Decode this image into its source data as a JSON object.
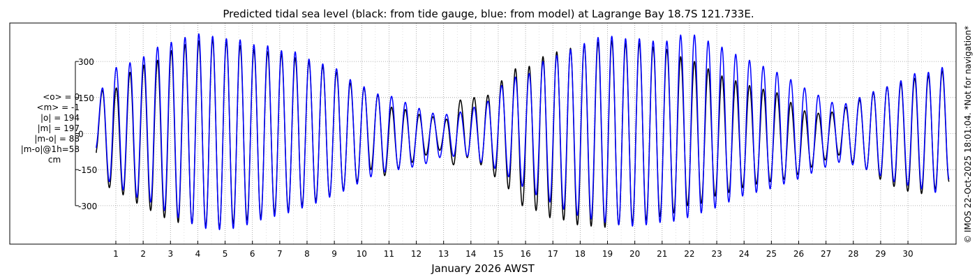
{
  "chart_data": {
    "type": "line",
    "title": "Predicted tidal sea level (black: from tide gauge, blue: from model) at Lagrange Bay 18.7S 121.733E.",
    "xlabel": "January 2026 AWST",
    "ylabel": "",
    "unit": "cm",
    "x_ticks": [
      "1",
      "2",
      "3",
      "4",
      "5",
      "6",
      "7",
      "8",
      "9",
      "10",
      "11",
      "12",
      "13",
      "14",
      "15",
      "16",
      "17",
      "18",
      "19",
      "20",
      "21",
      "22",
      "23",
      "24",
      "25",
      "26",
      "27",
      "28",
      "29",
      "30"
    ],
    "y_ticks": [
      -300,
      -150,
      0,
      150,
      300
    ],
    "xlim_days": [
      0.0,
      31.0
    ],
    "ylim": [
      -460,
      460
    ],
    "grid": true,
    "series": [
      {
        "name": "from tide gauge",
        "color": "#000000",
        "values": [
          [
            0.0,
            -80
          ],
          [
            0.25,
            180
          ],
          [
            0.5,
            -225
          ],
          [
            0.75,
            190
          ],
          [
            1.0,
            -255
          ],
          [
            1.25,
            255
          ],
          [
            1.5,
            -290
          ],
          [
            1.75,
            285
          ],
          [
            2.0,
            -320
          ],
          [
            2.25,
            305
          ],
          [
            2.5,
            -350
          ],
          [
            2.75,
            345
          ],
          [
            3.0,
            -370
          ],
          [
            3.25,
            370
          ],
          [
            3.5,
            -375
          ],
          [
            3.75,
            385
          ],
          [
            4.0,
            -385
          ],
          [
            4.25,
            390
          ],
          [
            4.5,
            -395
          ],
          [
            4.75,
            380
          ],
          [
            5.0,
            -375
          ],
          [
            5.25,
            365
          ],
          [
            5.5,
            -360
          ],
          [
            5.75,
            350
          ],
          [
            6.0,
            -350
          ],
          [
            6.25,
            340
          ],
          [
            6.5,
            -330
          ],
          [
            6.75,
            330
          ],
          [
            7.0,
            -320
          ],
          [
            7.25,
            315
          ],
          [
            7.5,
            -300
          ],
          [
            7.75,
            300
          ],
          [
            8.0,
            -280
          ],
          [
            8.25,
            280
          ],
          [
            8.5,
            -260
          ],
          [
            8.75,
            255
          ],
          [
            9.0,
            -235
          ],
          [
            9.25,
            210
          ],
          [
            9.5,
            -200
          ],
          [
            9.75,
            190
          ],
          [
            10.0,
            -150
          ],
          [
            10.25,
            160
          ],
          [
            10.5,
            -175
          ],
          [
            10.75,
            110
          ],
          [
            11.0,
            -145
          ],
          [
            11.25,
            100
          ],
          [
            11.5,
            -120
          ],
          [
            11.75,
            80
          ],
          [
            12.0,
            -90
          ],
          [
            12.25,
            70
          ],
          [
            12.5,
            -70
          ],
          [
            12.75,
            60
          ],
          [
            13.0,
            -130
          ],
          [
            13.25,
            140
          ],
          [
            13.5,
            -100
          ],
          [
            13.75,
            150
          ],
          [
            14.0,
            -130
          ],
          [
            14.25,
            160
          ],
          [
            14.5,
            -180
          ],
          [
            14.75,
            220
          ],
          [
            15.0,
            -230
          ],
          [
            15.25,
            270
          ],
          [
            15.5,
            -300
          ],
          [
            15.75,
            280
          ],
          [
            16.0,
            -320
          ],
          [
            16.25,
            320
          ],
          [
            16.5,
            -350
          ],
          [
            16.75,
            340
          ],
          [
            17.0,
            -360
          ],
          [
            17.25,
            355
          ],
          [
            17.5,
            -380
          ],
          [
            17.75,
            370
          ],
          [
            18.0,
            -385
          ],
          [
            18.25,
            380
          ],
          [
            18.5,
            -390
          ],
          [
            18.75,
            385
          ],
          [
            19.0,
            -380
          ],
          [
            19.25,
            375
          ],
          [
            19.5,
            -370
          ],
          [
            19.75,
            375
          ],
          [
            20.0,
            -360
          ],
          [
            20.25,
            360
          ],
          [
            20.5,
            -345
          ],
          [
            20.75,
            350
          ],
          [
            21.0,
            -330
          ],
          [
            21.25,
            320
          ],
          [
            21.5,
            -300
          ],
          [
            21.75,
            300
          ],
          [
            22.0,
            -290
          ],
          [
            22.25,
            270
          ],
          [
            22.5,
            -260
          ],
          [
            22.75,
            240
          ],
          [
            23.0,
            -245
          ],
          [
            23.25,
            220
          ],
          [
            23.5,
            -225
          ],
          [
            23.75,
            200
          ],
          [
            24.0,
            -210
          ],
          [
            24.25,
            185
          ],
          [
            24.5,
            -200
          ],
          [
            24.75,
            170
          ],
          [
            25.0,
            -190
          ],
          [
            25.25,
            130
          ],
          [
            25.5,
            -170
          ],
          [
            25.75,
            95
          ],
          [
            26.0,
            -140
          ],
          [
            26.25,
            85
          ],
          [
            26.5,
            -110
          ],
          [
            26.75,
            90
          ],
          [
            27.0,
            -90
          ],
          [
            27.25,
            110
          ],
          [
            27.5,
            -120
          ],
          [
            27.75,
            140
          ],
          [
            28.0,
            -150
          ],
          [
            28.25,
            170
          ],
          [
            28.5,
            -190
          ],
          [
            28.75,
            195
          ],
          [
            29.0,
            -220
          ],
          [
            29.25,
            210
          ],
          [
            29.5,
            -240
          ],
          [
            29.75,
            230
          ],
          [
            30.0,
            -250
          ],
          [
            30.25,
            240
          ],
          [
            30.5,
            -230
          ],
          [
            30.75,
            260
          ],
          [
            31.0,
            -200
          ]
        ]
      },
      {
        "name": "from model",
        "color": "#0000ff",
        "values": [
          [
            0.0,
            -60
          ],
          [
            0.25,
            190
          ],
          [
            0.5,
            -200
          ],
          [
            0.75,
            275
          ],
          [
            1.0,
            -235
          ],
          [
            1.25,
            295
          ],
          [
            1.5,
            -265
          ],
          [
            1.75,
            320
          ],
          [
            2.0,
            -285
          ],
          [
            2.25,
            360
          ],
          [
            2.5,
            -320
          ],
          [
            2.75,
            380
          ],
          [
            3.0,
            -350
          ],
          [
            3.25,
            400
          ],
          [
            3.5,
            -375
          ],
          [
            3.75,
            415
          ],
          [
            4.0,
            -395
          ],
          [
            4.25,
            405
          ],
          [
            4.5,
            -400
          ],
          [
            4.75,
            395
          ],
          [
            5.0,
            -395
          ],
          [
            5.25,
            390
          ],
          [
            5.5,
            -380
          ],
          [
            5.75,
            370
          ],
          [
            6.0,
            -360
          ],
          [
            6.25,
            365
          ],
          [
            6.5,
            -345
          ],
          [
            6.75,
            345
          ],
          [
            7.0,
            -330
          ],
          [
            7.25,
            340
          ],
          [
            7.5,
            -310
          ],
          [
            7.75,
            310
          ],
          [
            8.0,
            -290
          ],
          [
            8.25,
            290
          ],
          [
            8.5,
            -265
          ],
          [
            8.75,
            270
          ],
          [
            9.0,
            -240
          ],
          [
            9.25,
            225
          ],
          [
            9.5,
            -210
          ],
          [
            9.75,
            195
          ],
          [
            10.0,
            -180
          ],
          [
            10.25,
            165
          ],
          [
            10.5,
            -160
          ],
          [
            10.75,
            155
          ],
          [
            11.0,
            -150
          ],
          [
            11.25,
            130
          ],
          [
            11.5,
            -140
          ],
          [
            11.75,
            105
          ],
          [
            12.0,
            -125
          ],
          [
            12.25,
            85
          ],
          [
            12.5,
            -100
          ],
          [
            12.75,
            80
          ],
          [
            13.0,
            -95
          ],
          [
            13.25,
            90
          ],
          [
            13.5,
            -95
          ],
          [
            13.75,
            110
          ],
          [
            14.0,
            -120
          ],
          [
            14.25,
            135
          ],
          [
            14.5,
            -145
          ],
          [
            14.75,
            200
          ],
          [
            15.0,
            -180
          ],
          [
            15.25,
            235
          ],
          [
            15.5,
            -220
          ],
          [
            15.75,
            250
          ],
          [
            16.0,
            -255
          ],
          [
            16.25,
            300
          ],
          [
            16.5,
            -285
          ],
          [
            16.75,
            325
          ],
          [
            17.0,
            -315
          ],
          [
            17.25,
            350
          ],
          [
            17.5,
            -340
          ],
          [
            17.75,
            375
          ],
          [
            18.0,
            -355
          ],
          [
            18.25,
            400
          ],
          [
            18.5,
            -370
          ],
          [
            18.75,
            405
          ],
          [
            19.0,
            -380
          ],
          [
            19.25,
            395
          ],
          [
            19.5,
            -385
          ],
          [
            19.75,
            395
          ],
          [
            20.0,
            -380
          ],
          [
            20.25,
            385
          ],
          [
            20.5,
            -370
          ],
          [
            20.75,
            385
          ],
          [
            21.0,
            -365
          ],
          [
            21.25,
            410
          ],
          [
            21.5,
            -350
          ],
          [
            21.75,
            410
          ],
          [
            22.0,
            -330
          ],
          [
            22.25,
            385
          ],
          [
            22.5,
            -310
          ],
          [
            22.75,
            360
          ],
          [
            23.0,
            -285
          ],
          [
            23.25,
            330
          ],
          [
            23.5,
            -260
          ],
          [
            23.75,
            305
          ],
          [
            24.0,
            -245
          ],
          [
            24.25,
            280
          ],
          [
            24.5,
            -230
          ],
          [
            24.75,
            255
          ],
          [
            25.0,
            -210
          ],
          [
            25.25,
            225
          ],
          [
            25.5,
            -190
          ],
          [
            25.75,
            190
          ],
          [
            26.0,
            -165
          ],
          [
            26.25,
            160
          ],
          [
            26.5,
            -140
          ],
          [
            26.75,
            130
          ],
          [
            27.0,
            -120
          ],
          [
            27.25,
            125
          ],
          [
            27.5,
            -130
          ],
          [
            27.75,
            150
          ],
          [
            28.0,
            -150
          ],
          [
            28.25,
            175
          ],
          [
            28.5,
            -175
          ],
          [
            28.75,
            195
          ],
          [
            29.0,
            -200
          ],
          [
            29.25,
            220
          ],
          [
            29.5,
            -215
          ],
          [
            29.75,
            250
          ],
          [
            30.0,
            -230
          ],
          [
            30.25,
            255
          ],
          [
            30.5,
            -245
          ],
          [
            30.75,
            275
          ],
          [
            31.0,
            -190
          ]
        ]
      }
    ]
  },
  "stats": {
    "mean_o": "<o> = 0",
    "mean_m": "<m> = -1",
    "abs_o": "|o| = 194",
    "abs_m": "|m| = 197",
    "abs_mo": "|m-o| = 88",
    "abs_mo_1h": "|m-o|@1h=58",
    "unit": "cm"
  },
  "copyright": "© IMOS 22-Oct-2025 18:01:04. *Not for navigation*"
}
